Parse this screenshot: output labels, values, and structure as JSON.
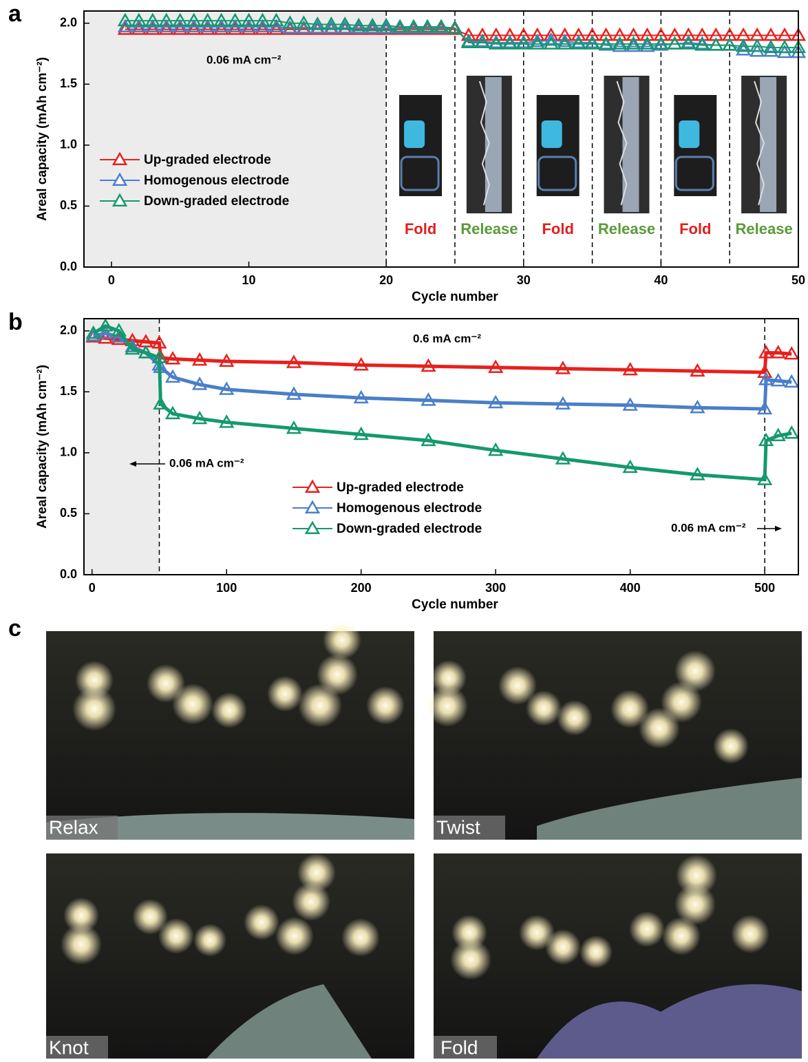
{
  "chart_data": [
    {
      "type": "line",
      "panel": "a",
      "xlabel": "Cycle number",
      "ylabel": "Areal capacity (mAh cm⁻²)",
      "x": [
        1,
        2,
        3,
        4,
        5,
        6,
        7,
        8,
        9,
        10,
        11,
        12,
        13,
        14,
        15,
        16,
        17,
        18,
        19,
        20,
        21,
        22,
        23,
        24,
        25,
        26,
        27,
        28,
        29,
        30,
        31,
        32,
        33,
        34,
        35,
        36,
        37,
        38,
        39,
        40,
        41,
        42,
        43,
        44,
        45,
        46,
        47,
        48,
        49,
        50
      ],
      "series": [
        {
          "name": "Up-graded electrode",
          "color": "#e8201c",
          "values": [
            1.95,
            1.95,
            1.95,
            1.95,
            1.95,
            1.95,
            1.95,
            1.95,
            1.95,
            1.95,
            1.95,
            1.95,
            1.95,
            1.95,
            1.95,
            1.95,
            1.95,
            1.95,
            1.95,
            1.95,
            1.95,
            1.95,
            1.95,
            1.95,
            1.95,
            1.9,
            1.9,
            1.9,
            1.9,
            1.9,
            1.9,
            1.9,
            1.9,
            1.9,
            1.9,
            1.9,
            1.9,
            1.9,
            1.9,
            1.9,
            1.9,
            1.9,
            1.9,
            1.9,
            1.9,
            1.9,
            1.9,
            1.9,
            1.9,
            1.9
          ]
        },
        {
          "name": "Homogenous electrode",
          "color": "#4a7fc8",
          "values": [
            1.97,
            1.97,
            1.97,
            1.97,
            1.97,
            1.97,
            1.97,
            1.97,
            1.97,
            1.97,
            1.97,
            1.97,
            1.96,
            1.96,
            1.96,
            1.96,
            1.96,
            1.96,
            1.96,
            1.96,
            1.96,
            1.96,
            1.96,
            1.96,
            1.96,
            1.85,
            1.85,
            1.84,
            1.84,
            1.84,
            1.85,
            1.86,
            1.85,
            1.84,
            1.84,
            1.82,
            1.81,
            1.81,
            1.81,
            1.82,
            1.83,
            1.84,
            1.83,
            1.82,
            1.82,
            1.78,
            1.77,
            1.77,
            1.76,
            1.76
          ]
        },
        {
          "name": "Down-graded electrode",
          "color": "#14996e",
          "values": [
            2.02,
            2.02,
            2.02,
            2.02,
            2.02,
            2.02,
            2.02,
            2.02,
            2.02,
            2.02,
            2.02,
            2.02,
            2.0,
            2.0,
            1.99,
            1.99,
            1.99,
            1.98,
            1.98,
            1.98,
            1.97,
            1.97,
            1.97,
            1.97,
            1.96,
            1.84,
            1.84,
            1.83,
            1.83,
            1.83,
            1.83,
            1.83,
            1.83,
            1.83,
            1.83,
            1.83,
            1.83,
            1.83,
            1.83,
            1.83,
            1.83,
            1.83,
            1.82,
            1.82,
            1.82,
            1.81,
            1.81,
            1.8,
            1.8,
            1.8
          ]
        }
      ],
      "xlim": [
        -2,
        50
      ],
      "ylim": [
        0,
        2.1
      ],
      "xticks": [
        0,
        10,
        20,
        30,
        40,
        50
      ],
      "yticks": [
        {
          "value": 0,
          "label": "0.0"
        },
        0.5,
        {
          "value": 1,
          "label": "1.0"
        },
        1.5,
        {
          "value": 2,
          "label": "2.0"
        }
      ],
      "shaded_until": 20,
      "dividers": [
        20,
        25,
        30,
        35,
        40,
        45
      ],
      "legend": "center left",
      "phases": [
        {
          "label": "Fold",
          "color": "#e0201c"
        },
        {
          "label": "Release",
          "color": "#5a9a3a"
        },
        {
          "label": "Fold",
          "color": "#e0201c"
        },
        {
          "label": "Release",
          "color": "#5a9a3a"
        },
        {
          "label": "Fold",
          "color": "#e0201c"
        },
        {
          "label": "Release",
          "color": "#5a9a3a"
        }
      ],
      "annotations": [
        "0.06 mA cm⁻²"
      ]
    },
    {
      "type": "line",
      "panel": "b",
      "xlabel": "Cycle number",
      "ylabel": "Areal capacity (mAh cm⁻²)",
      "x": [
        1,
        10,
        20,
        30,
        40,
        50,
        51,
        60,
        80,
        100,
        150,
        200,
        250,
        300,
        350,
        400,
        450,
        500,
        501,
        510,
        520
      ],
      "series": [
        {
          "name": "Up-graded electrode",
          "color": "#e8201c",
          "values": [
            1.95,
            1.94,
            1.93,
            1.92,
            1.91,
            1.9,
            1.78,
            1.77,
            1.76,
            1.75,
            1.74,
            1.72,
            1.71,
            1.7,
            1.69,
            1.68,
            1.67,
            1.66,
            1.82,
            1.82,
            1.81
          ]
        },
        {
          "name": "Homogenous electrode",
          "color": "#4a7fc8",
          "values": [
            1.96,
            1.98,
            1.95,
            1.87,
            1.82,
            1.72,
            1.7,
            1.62,
            1.56,
            1.52,
            1.48,
            1.45,
            1.43,
            1.41,
            1.4,
            1.39,
            1.37,
            1.36,
            1.6,
            1.59,
            1.58
          ]
        },
        {
          "name": "Down-graded electrode",
          "color": "#14996e",
          "values": [
            1.98,
            2.04,
            2.0,
            1.85,
            1.82,
            1.78,
            1.4,
            1.32,
            1.28,
            1.25,
            1.2,
            1.15,
            1.1,
            1.02,
            0.95,
            0.88,
            0.82,
            0.78,
            1.1,
            1.14,
            1.16
          ]
        }
      ],
      "xlim": [
        -6,
        525
      ],
      "ylim": [
        0,
        2.1
      ],
      "xticks": [
        0,
        100,
        200,
        300,
        400,
        500
      ],
      "yticks": [
        {
          "value": 0,
          "label": "0.0"
        },
        0.5,
        {
          "value": 1,
          "label": "1.0"
        },
        1.5,
        {
          "value": 2,
          "label": "2.0"
        }
      ],
      "shaded_until": 50,
      "dividers": [
        50,
        500
      ],
      "legend": "center",
      "annotations": [
        "0.6 mA cm⁻²",
        "0.06 mA cm⁻²",
        "0.06 mA cm⁻²"
      ]
    }
  ],
  "photo_panel": {
    "panel": "c",
    "captions": [
      "Relax",
      "Twist",
      "Knot",
      "Fold"
    ]
  }
}
